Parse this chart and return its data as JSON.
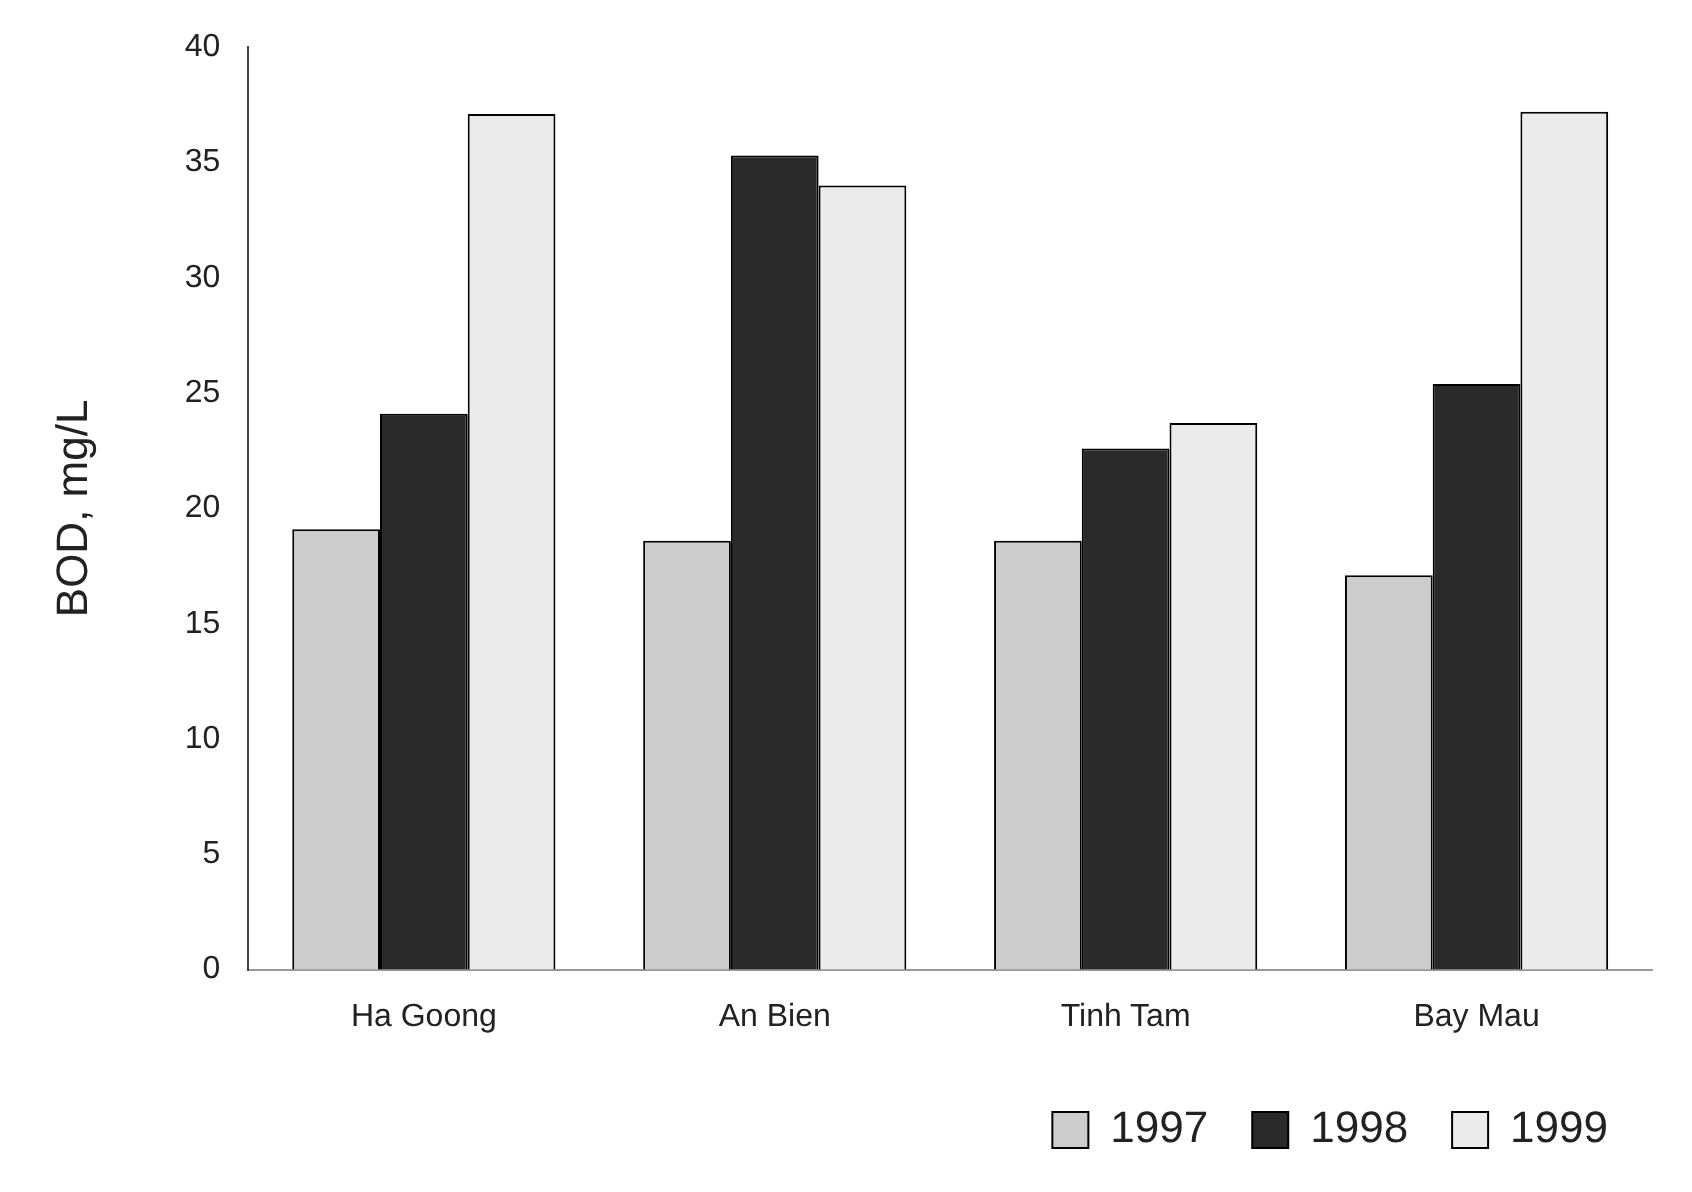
{
  "chart_data": {
    "type": "bar",
    "ylabel": "BOD, mg/L",
    "categories": [
      "Ha Goong",
      "An Bien",
      "Tinh Tam",
      "Bay Mau"
    ],
    "series": [
      {
        "name": "1997",
        "color": "#cccccc",
        "values": [
          19.1,
          18.6,
          18.6,
          17.1
        ]
      },
      {
        "name": "1998",
        "color": "#2a2a2a",
        "values": [
          24.1,
          35.3,
          22.6,
          25.4
        ]
      },
      {
        "name": "1999",
        "color": "#ebebeb",
        "values": [
          37.1,
          34.0,
          23.7,
          37.2
        ]
      }
    ],
    "ylim": [
      0,
      40
    ],
    "yticks": [
      0,
      5,
      10,
      15,
      20,
      25,
      30,
      35,
      40
    ],
    "grid": false,
    "legend": "bottom right"
  }
}
